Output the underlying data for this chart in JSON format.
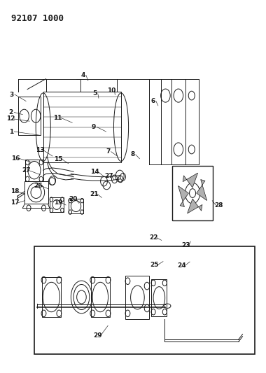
{
  "title_code": "92107 1000",
  "bg_color": "#ffffff",
  "line_color": "#1a1a1a",
  "fig_width": 3.8,
  "fig_height": 5.33,
  "dpi": 100
}
